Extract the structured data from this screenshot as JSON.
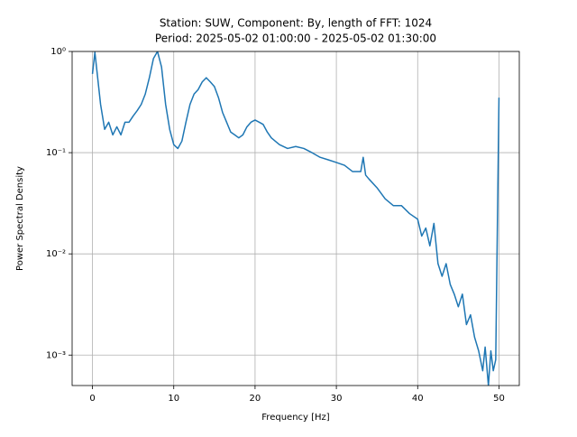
{
  "chart_data": {
    "type": "line",
    "title": "Station: SUW, Component: By, length of FFT: 1024",
    "subtitle": "Period: 2025-05-02 01:00:00 - 2025-05-02 01:30:00",
    "x_label": "Frequency [Hz]",
    "y_label": "Power Spectral Density",
    "y_scale": "log",
    "grid": true,
    "xlim": [
      -2.5,
      52.5
    ],
    "ylim": [
      0.0005,
      1
    ],
    "xticks": [
      0,
      10,
      20,
      30,
      40,
      50
    ],
    "yticks": [
      {
        "value": 0.001,
        "label": "10⁻³"
      },
      {
        "value": 0.01,
        "label": "10⁻²"
      },
      {
        "value": 0.1,
        "label": "10⁻¹"
      },
      {
        "value": 1,
        "label": "10⁰"
      }
    ],
    "series": [
      {
        "color": "#1f77b4",
        "x": [
          0,
          0.3,
          0.5,
          1,
          1.5,
          2,
          2.5,
          3,
          3.5,
          4,
          4.5,
          5,
          5.5,
          6,
          6.5,
          7,
          7.5,
          8,
          8.5,
          9,
          9.5,
          10,
          10.5,
          11,
          11.5,
          12,
          12.5,
          13,
          13.5,
          14,
          14.5,
          15,
          15.5,
          16,
          16.5,
          17,
          17.5,
          18,
          18.5,
          19,
          19.5,
          20,
          20.5,
          21,
          21.5,
          22,
          23,
          24,
          25,
          26,
          27,
          28,
          29,
          30,
          31,
          32,
          33,
          33.3,
          33.6,
          34,
          35,
          36,
          37,
          38,
          39,
          40,
          40.5,
          41,
          41.5,
          42,
          42.5,
          43,
          43.5,
          44,
          44.5,
          45,
          45.5,
          46,
          46.5,
          47,
          47.5,
          48,
          48.3,
          48.7,
          49,
          49.3,
          49.6,
          50
        ],
        "values": [
          0.6,
          0.98,
          0.7,
          0.3,
          0.17,
          0.2,
          0.15,
          0.18,
          0.15,
          0.2,
          0.2,
          0.23,
          0.26,
          0.3,
          0.38,
          0.55,
          0.85,
          1.0,
          0.7,
          0.3,
          0.17,
          0.12,
          0.11,
          0.13,
          0.2,
          0.3,
          0.38,
          0.42,
          0.5,
          0.55,
          0.5,
          0.45,
          0.35,
          0.25,
          0.2,
          0.16,
          0.15,
          0.14,
          0.15,
          0.18,
          0.2,
          0.21,
          0.2,
          0.19,
          0.16,
          0.14,
          0.12,
          0.11,
          0.115,
          0.11,
          0.1,
          0.09,
          0.085,
          0.08,
          0.075,
          0.065,
          0.065,
          0.09,
          0.06,
          0.055,
          0.045,
          0.035,
          0.03,
          0.03,
          0.025,
          0.022,
          0.015,
          0.018,
          0.012,
          0.02,
          0.008,
          0.006,
          0.008,
          0.005,
          0.004,
          0.003,
          0.004,
          0.002,
          0.0025,
          0.0015,
          0.0011,
          0.0007,
          0.0012,
          0.0005,
          0.0011,
          0.0007,
          0.0009,
          0.35
        ]
      }
    ]
  }
}
